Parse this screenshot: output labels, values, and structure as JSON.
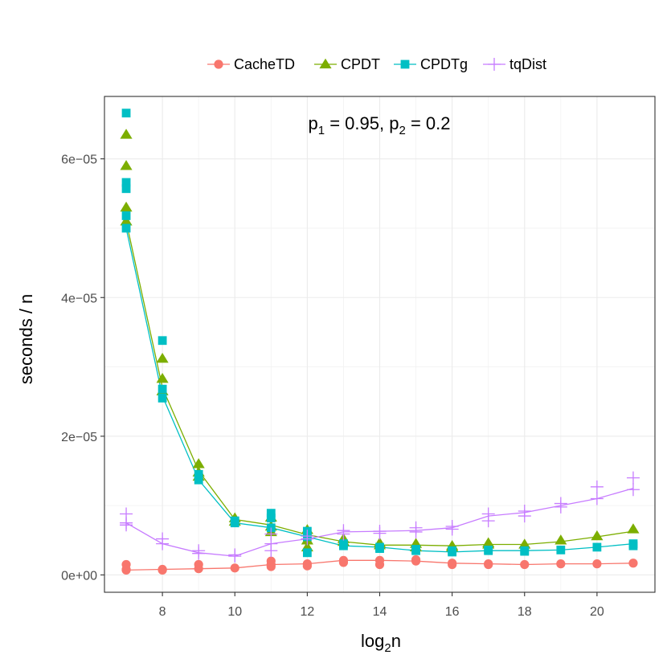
{
  "chart_data": {
    "type": "line",
    "xlabel_base": "log",
    "xlabel_sub": "2",
    "xlabel_var": "n",
    "ylabel": "seconds / n",
    "xlim": [
      6.4,
      21.6
    ],
    "ylim": [
      -2.5e-06,
      6.9e-05
    ],
    "x_ticks": [
      8,
      10,
      12,
      14,
      16,
      18,
      20
    ],
    "x_tick_labels": [
      "8",
      "10",
      "12",
      "14",
      "16",
      "18",
      "20"
    ],
    "y_ticks": [
      0,
      2e-05,
      4e-05,
      6e-05
    ],
    "y_tick_labels": [
      "0e+00",
      "2e−05",
      "4e−05",
      "6e−05"
    ],
    "grid": true,
    "legend_position": "top",
    "annotation": {
      "p1_label": "p",
      "p1_sub": "1",
      "p1_value": " = 0.95, ",
      "p2_label": "p",
      "p2_sub": "2",
      "p2_value": " = 0.2"
    },
    "series": [
      {
        "name": "CacheTD",
        "color": "#F8766D",
        "marker": "circle",
        "line": {
          "x": [
            7,
            8,
            9,
            10,
            11,
            12,
            13,
            14,
            15,
            16,
            17,
            18,
            19,
            20,
            21
          ],
          "y": [
            7e-07,
            8e-07,
            9e-07,
            1e-06,
            1.5e-06,
            1.6e-06,
            2.1e-06,
            2.1e-06,
            2e-06,
            1.7e-06,
            1.6e-06,
            1.5e-06,
            1.6e-06,
            1.6e-06,
            1.7e-06
          ]
        },
        "points": {
          "x": [
            7,
            7,
            7,
            8,
            8,
            9,
            9,
            10,
            11,
            11,
            11,
            12,
            12,
            13,
            13,
            14,
            14,
            15,
            15,
            16,
            16,
            17,
            17,
            18,
            19,
            20,
            21
          ],
          "y": [
            7e-07,
            1.5e-06,
            8e-07,
            8e-07,
            7e-07,
            9e-07,
            1.5e-06,
            1e-06,
            1.5e-06,
            1.2e-06,
            2e-06,
            1.6e-06,
            1.3e-06,
            2.1e-06,
            1.8e-06,
            2.1e-06,
            1.5e-06,
            2e-06,
            2.2e-06,
            1.7e-06,
            1.5e-06,
            1.6e-06,
            1.5e-06,
            1.5e-06,
            1.6e-06,
            1.6e-06,
            1.7e-06
          ]
        }
      },
      {
        "name": "CPDT",
        "color": "#7CAE00",
        "marker": "triangle",
        "line": {
          "x": [
            7,
            8,
            9,
            10,
            11,
            12,
            13,
            14,
            15,
            16,
            17,
            18,
            19,
            20,
            21
          ],
          "y": [
            5.1e-05,
            2.7e-05,
            1.5e-05,
            8e-06,
            7.2e-06,
            5.8e-06,
            4.8e-06,
            4.3e-06,
            4.3e-06,
            4.2e-06,
            4.4e-06,
            4.4e-06,
            4.8e-06,
            5.5e-06,
            6.3e-06
          ]
        },
        "points": {
          "x": [
            7,
            7,
            7,
            7,
            8,
            8,
            8,
            9,
            9,
            9,
            10,
            10,
            11,
            11,
            11,
            12,
            12,
            12,
            13,
            13,
            14,
            14,
            15,
            15,
            16,
            16,
            17,
            17,
            18,
            19,
            20,
            21
          ],
          "y": [
            6.35e-05,
            5.9e-05,
            5.3e-05,
            5.1e-05,
            3.12e-05,
            2.83e-05,
            2.65e-05,
            1.6e-05,
            1.48e-05,
            1.42e-05,
            8.2e-06,
            7.7e-06,
            8.3e-06,
            7e-06,
            6.2e-06,
            6.5e-06,
            5e-06,
            4e-06,
            5.2e-06,
            4.8e-06,
            4.6e-06,
            4.3e-06,
            4.5e-06,
            4e-06,
            4e-06,
            4.2e-06,
            4.4e-06,
            4.6e-06,
            4.4e-06,
            5e-06,
            5.6e-06,
            6.6e-06
          ]
        }
      },
      {
        "name": "CPDTg",
        "color": "#00BFC4",
        "marker": "square",
        "line": {
          "x": [
            7,
            8,
            9,
            10,
            11,
            12,
            13,
            14,
            15,
            16,
            17,
            18,
            19,
            20,
            21
          ],
          "y": [
            5e-05,
            2.58e-05,
            1.37e-05,
            7.5e-06,
            6.8e-06,
            5.5e-06,
            4.2e-06,
            4e-06,
            3.5e-06,
            3.3e-06,
            3.5e-06,
            3.5e-06,
            3.6e-06,
            4e-06,
            4.5e-06
          ]
        },
        "points": {
          "x": [
            7,
            7,
            7,
            7,
            7,
            8,
            8,
            8,
            9,
            9,
            10,
            10,
            11,
            11,
            11,
            12,
            12,
            12,
            13,
            13,
            14,
            14,
            15,
            15,
            16,
            16,
            17,
            17,
            18,
            18,
            19,
            20,
            21,
            21
          ],
          "y": [
            6.66e-05,
            5.66e-05,
            5.57e-05,
            5.18e-05,
            5e-05,
            3.38e-05,
            2.68e-05,
            2.55e-05,
            1.37e-05,
            1.45e-05,
            7.5e-06,
            7.8e-06,
            8.9e-06,
            8.2e-06,
            6.8e-06,
            6.3e-06,
            5.5e-06,
            3.2e-06,
            4.2e-06,
            4.5e-06,
            4e-06,
            3.8e-06,
            3.5e-06,
            3.7e-06,
            3.3e-06,
            3.5e-06,
            3.5e-06,
            3.6e-06,
            3.5e-06,
            3.4e-06,
            3.6e-06,
            4e-06,
            4.5e-06,
            4.2e-06
          ]
        }
      },
      {
        "name": "tqDist",
        "color": "#C77CFF",
        "marker": "plus",
        "line": {
          "x": [
            7,
            8,
            9,
            10,
            11,
            12,
            13,
            14,
            15,
            16,
            17,
            18,
            19,
            20,
            21
          ],
          "y": [
            7.5e-06,
            4.5e-06,
            3.2e-06,
            2.7e-06,
            4.5e-06,
            5.2e-06,
            6.2e-06,
            6.3e-06,
            6.4e-06,
            6.8e-06,
            8.5e-06,
            9e-06,
            1e-05,
            1.1e-05,
            1.25e-05
          ]
        },
        "points": {
          "x": [
            7,
            7,
            7,
            8,
            8,
            9,
            9,
            10,
            10,
            11,
            11,
            11,
            12,
            12,
            13,
            13,
            14,
            14,
            15,
            15,
            16,
            16,
            17,
            17,
            18,
            18,
            19,
            19,
            20,
            20,
            21,
            21
          ],
          "y": [
            8.8e-06,
            7.5e-06,
            7.2e-06,
            5.2e-06,
            4.5e-06,
            3.5e-06,
            3.1e-06,
            2.9e-06,
            2.7e-06,
            5.9e-06,
            4.5e-06,
            3.5e-06,
            5.2e-06,
            5.6e-06,
            6.4e-06,
            5.9e-06,
            6.3e-06,
            6e-06,
            6.8e-06,
            6.2e-06,
            7e-06,
            6.6e-06,
            8.8e-06,
            7.8e-06,
            9.2e-06,
            8.5e-06,
            1.03e-05,
            9.8e-06,
            1.27e-05,
            1.1e-05,
            1.4e-05,
            1.23e-05
          ]
        }
      }
    ]
  }
}
